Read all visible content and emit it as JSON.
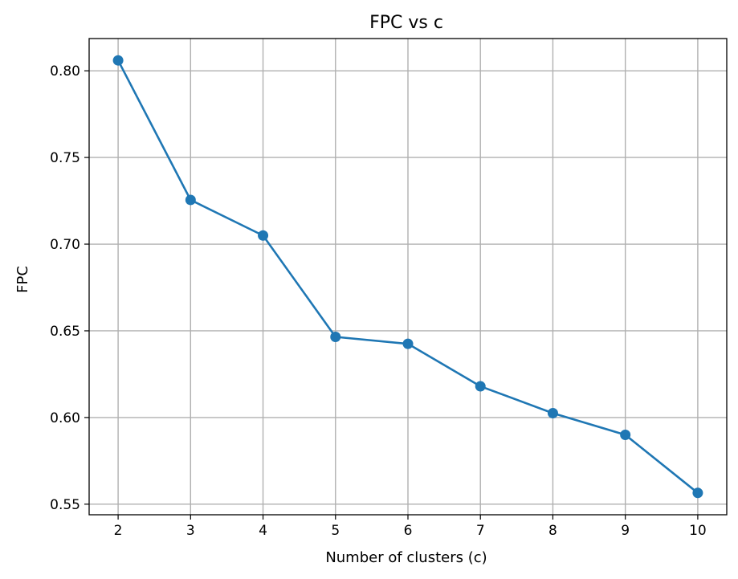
{
  "chart_data": {
    "type": "line",
    "title": "FPC vs c",
    "xlabel": "Number of clusters (c)",
    "ylabel": "FPC",
    "x": [
      2,
      3,
      4,
      5,
      6,
      7,
      8,
      9,
      10
    ],
    "series": [
      {
        "values": [
          0.806,
          0.7255,
          0.705,
          0.6465,
          0.6425,
          0.618,
          0.6025,
          0.59,
          0.5565
        ],
        "color": "#1f77b4",
        "marker": "circle"
      }
    ],
    "xticks": [
      "2",
      "3",
      "4",
      "5",
      "6",
      "7",
      "8",
      "9",
      "10"
    ],
    "yticks": [
      "0.55",
      "0.60",
      "0.65",
      "0.70",
      "0.75",
      "0.80"
    ],
    "xlim": [
      1.6,
      10.4
    ],
    "ylim": [
      0.5439,
      0.8186
    ],
    "grid": true
  }
}
